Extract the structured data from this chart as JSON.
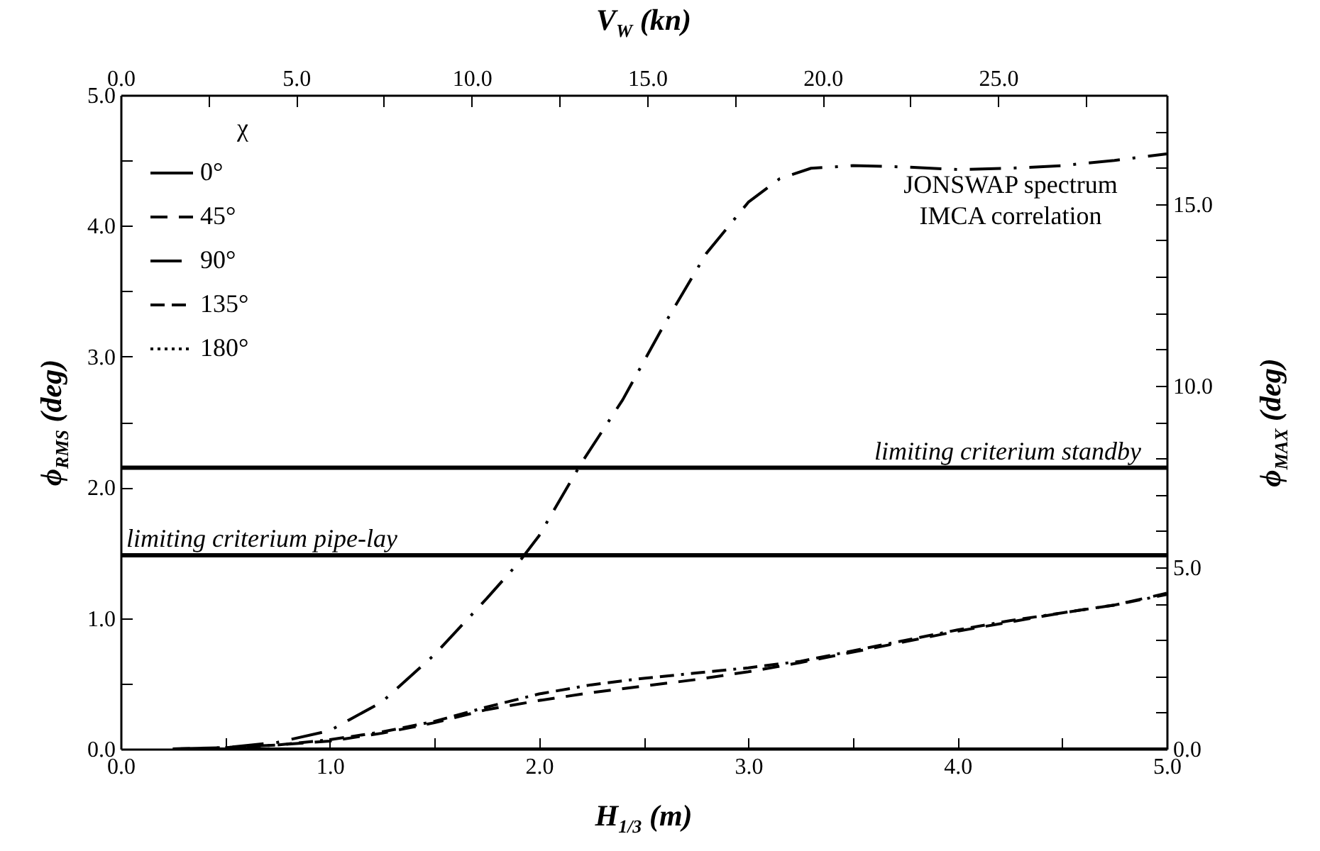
{
  "chart_data": {
    "type": "line",
    "xlabel": "H$_{1/3}$ (m)",
    "x2label": "V$_{W}$ (kn)",
    "ylabel": "ϕ$_{RMS}$ (deg)",
    "y2label": "ϕ$_{MAX}$ (deg)",
    "legend_title": "χ",
    "legend": "top left",
    "grid": false,
    "annotations": [
      "JONSWAP spectrum",
      "IMCA correlation"
    ],
    "xlim": [
      0,
      5
    ],
    "ylim": [
      0,
      5
    ],
    "x2lim": [
      0,
      29.8
    ],
    "y2lim": [
      0,
      18
    ],
    "xticks": [
      {
        "value": 0,
        "label": "0.0"
      },
      {
        "value": 0.5,
        "label": null
      },
      {
        "value": 1,
        "label": "1.0"
      },
      {
        "value": 1.5,
        "label": null
      },
      {
        "value": 2,
        "label": "2.0"
      },
      {
        "value": 2.5,
        "label": null
      },
      {
        "value": 3,
        "label": "3.0"
      },
      {
        "value": 3.5,
        "label": null
      },
      {
        "value": 4,
        "label": "4.0"
      },
      {
        "value": 4.5,
        "label": null
      },
      {
        "value": 5,
        "label": "5.0"
      }
    ],
    "yticks": [
      {
        "value": 0,
        "label": "0.0"
      },
      {
        "value": 0.5,
        "label": null
      },
      {
        "value": 1,
        "label": "1.0"
      },
      {
        "value": 1.5,
        "label": null
      },
      {
        "value": 2,
        "label": "2.0"
      },
      {
        "value": 2.5,
        "label": null
      },
      {
        "value": 3,
        "label": "3.0"
      },
      {
        "value": 3.5,
        "label": null
      },
      {
        "value": 4,
        "label": "4.0"
      },
      {
        "value": 4.5,
        "label": null
      },
      {
        "value": 5,
        "label": "5.0"
      }
    ],
    "x2ticks": [
      {
        "value": 0,
        "label": "0.0"
      },
      {
        "value": 2.5,
        "label": null
      },
      {
        "value": 5,
        "label": "5.0"
      },
      {
        "value": 7.5,
        "label": null
      },
      {
        "value": 10,
        "label": "10.0"
      },
      {
        "value": 12.5,
        "label": null
      },
      {
        "value": 15,
        "label": "15.0"
      },
      {
        "value": 17.5,
        "label": null
      },
      {
        "value": 20,
        "label": "20.0"
      },
      {
        "value": 22.5,
        "label": null
      },
      {
        "value": 25,
        "label": "25.0"
      },
      {
        "value": 27.5,
        "label": null
      }
    ],
    "y2ticks": [
      {
        "value": 0,
        "label": "0.0"
      },
      {
        "value": 1,
        "label": null
      },
      {
        "value": 2,
        "label": null
      },
      {
        "value": 3,
        "label": null
      },
      {
        "value": 4,
        "label": null
      },
      {
        "value": 5,
        "label": "5.0"
      },
      {
        "value": 6,
        "label": null
      },
      {
        "value": 7,
        "label": null
      },
      {
        "value": 8,
        "label": null
      },
      {
        "value": 9,
        "label": null
      },
      {
        "value": 10,
        "label": "10.0"
      },
      {
        "value": 11,
        "label": null
      },
      {
        "value": 12,
        "label": null
      },
      {
        "value": 13,
        "label": null
      },
      {
        "value": 14,
        "label": null
      },
      {
        "value": 15,
        "label": "15.0"
      },
      {
        "value": 16,
        "label": null
      },
      {
        "value": 17,
        "label": null
      }
    ],
    "ref_lines": [
      {
        "axis": "y",
        "value": 2.15,
        "label": "limiting criterium standby"
      },
      {
        "axis": "y",
        "value": 1.48,
        "label": "limiting criterium pipe-lay"
      }
    ],
    "x": [
      0.25,
      0.5,
      0.75,
      1.0,
      1.25,
      1.5,
      1.75,
      2.0,
      2.25,
      2.5,
      2.75,
      3.0,
      3.25,
      3.5,
      3.75,
      4.0,
      4.25,
      4.5,
      4.75,
      5.0
    ],
    "series": [
      {
        "name": "0°",
        "color": "#000000",
        "line_style": "solid",
        "values": [
          0,
          0,
          0,
          0,
          0,
          0,
          0,
          0,
          0,
          0,
          0,
          0,
          0,
          0,
          0,
          0,
          0,
          0,
          0,
          0
        ]
      },
      {
        "name": "45°",
        "color": "#000000",
        "line_style": "dashed",
        "values": [
          0,
          0.01,
          0.03,
          0.06,
          0.12,
          0.2,
          0.3,
          0.37,
          0.43,
          0.48,
          0.53,
          0.59,
          0.66,
          0.74,
          0.82,
          0.9,
          0.97,
          1.04,
          1.1,
          1.19
        ]
      },
      {
        "name": "90°",
        "color": "#000000",
        "line_style": "dashdot",
        "x": [
          0.25,
          0.5,
          0.75,
          1.0,
          1.25,
          1.5,
          1.75,
          1.9,
          2.0,
          2.2,
          2.4,
          2.6,
          2.8,
          3.0,
          3.15,
          3.3,
          3.5,
          3.75,
          4.0,
          4.25,
          4.5,
          4.75,
          5.0
        ],
        "values": [
          0,
          0.01,
          0.05,
          0.14,
          0.36,
          0.72,
          1.15,
          1.42,
          1.63,
          2.18,
          2.67,
          3.25,
          3.79,
          4.18,
          4.36,
          4.44,
          4.46,
          4.45,
          4.43,
          4.44,
          4.46,
          4.5,
          4.55
        ]
      },
      {
        "name": "135°",
        "color": "#000000",
        "line_style": "dashdashdot",
        "x": [
          0.5,
          0.75,
          1.0,
          1.25,
          1.5,
          1.75,
          2.0,
          2.25,
          2.5,
          2.75,
          3.0,
          3.25,
          3.5,
          3.75,
          4.0,
          4.25,
          4.5,
          4.75,
          5.0
        ],
        "values": [
          0.01,
          0.03,
          0.07,
          0.13,
          0.21,
          0.32,
          0.42,
          0.49,
          0.54,
          0.58,
          0.62,
          0.67,
          0.75,
          0.83,
          0.91,
          0.98,
          1.04,
          1.1,
          1.18
        ]
      },
      {
        "name": "180°",
        "color": "#000000",
        "line_style": "dotted",
        "values": [
          null,
          null,
          null,
          null,
          null,
          null,
          null,
          null,
          null,
          null,
          null,
          null,
          null,
          null,
          null,
          null,
          null,
          null,
          null,
          null
        ]
      }
    ]
  }
}
